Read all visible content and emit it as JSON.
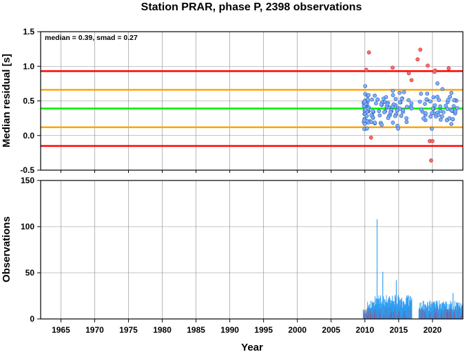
{
  "title": "Station PRAR, phase P, 2398 observations",
  "annotation": "median = 0.39, smad = 0.27",
  "xlabel": "Year",
  "colors": {
    "median": "#00ee00",
    "one_smad": "#ffa500",
    "two_smad": "#ff0000",
    "point_fill": "#7fb0ff",
    "point_outlier": "#ff6a6a",
    "bar": "#2d9cf0",
    "bar_red": "#c0304a"
  },
  "chart_data": [
    {
      "type": "scatter",
      "ylabel": "Median residual [s]",
      "xlim": [
        1962,
        2024.5
      ],
      "ylim": [
        -0.5,
        1.5
      ],
      "x_ticks": [
        "1965",
        "1970",
        "1975",
        "1980",
        "1985",
        "1990",
        "1995",
        "2000",
        "2005",
        "2010",
        "2015",
        "2020"
      ],
      "y_ticks": [
        "-0.5",
        "0.0",
        "0.5",
        "1.0",
        "1.5"
      ],
      "grid": true,
      "reference_lines": [
        {
          "name": "median",
          "y": 0.39
        },
        {
          "name": "median-1smad",
          "y": 0.12
        },
        {
          "name": "median+1smad",
          "y": 0.66
        },
        {
          "name": "median-2smad",
          "y": -0.15
        },
        {
          "name": "median+2smad",
          "y": 0.93
        }
      ],
      "outliers": [
        {
          "x": 2010.2,
          "y": 0.95
        },
        {
          "x": 2010.6,
          "y": 1.2
        },
        {
          "x": 2010.9,
          "y": -0.03
        },
        {
          "x": 2014.1,
          "y": 0.98
        },
        {
          "x": 2016.5,
          "y": 0.9
        },
        {
          "x": 2016.9,
          "y": 0.8
        },
        {
          "x": 2017.8,
          "y": 1.1
        },
        {
          "x": 2018.2,
          "y": 1.24
        },
        {
          "x": 2019.3,
          "y": 1.01
        },
        {
          "x": 2019.6,
          "y": -0.08
        },
        {
          "x": 2019.8,
          "y": -0.36
        },
        {
          "x": 2020.0,
          "y": -0.08
        },
        {
          "x": 2020.4,
          "y": 0.94
        },
        {
          "x": 2020.3,
          "y": 0.92
        },
        {
          "x": 2022.4,
          "y": 0.97
        }
      ]
    },
    {
      "type": "bar",
      "ylabel": "Observations",
      "xlim": [
        1962,
        2024.5
      ],
      "ylim": [
        0,
        150
      ],
      "y_ticks": [
        "0",
        "50",
        "100",
        "150"
      ],
      "grid": true,
      "peaks": [
        {
          "x": 2011.75,
          "value": 108
        },
        {
          "x": 2012.6,
          "value": 51
        },
        {
          "x": 2014.6,
          "value": 42
        },
        {
          "x": 2023.0,
          "value": 28
        }
      ]
    }
  ]
}
